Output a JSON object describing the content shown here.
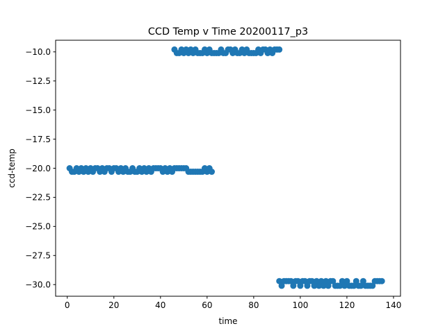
{
  "chart_data": {
    "type": "scatter",
    "title": "CCD Temp v Time 20200117_p3",
    "xlabel": "time",
    "ylabel": "ccd-temp",
    "xlim": [
      -5,
      143
    ],
    "ylim": [
      -31.0,
      -9.0
    ],
    "xticks": [
      0,
      20,
      40,
      60,
      80,
      100,
      120,
      140
    ],
    "xtick_labels": [
      "0",
      "20",
      "40",
      "60",
      "80",
      "100",
      "120",
      "140"
    ],
    "yticks": [
      -10.0,
      -12.5,
      -15.0,
      -17.5,
      -20.0,
      -22.5,
      -25.0,
      -27.5,
      -30.0
    ],
    "ytick_labels": [
      "−10.0",
      "−12.5",
      "−15.0",
      "−17.5",
      "−20.0",
      "−22.5",
      "−25.0",
      "−27.5",
      "−30.0"
    ],
    "grid": false,
    "marker_color": "#1f77b4",
    "points": [
      {
        "x": 1,
        "y": -20.0
      },
      {
        "x": 2,
        "y": -20.3
      },
      {
        "x": 3,
        "y": -20.3
      },
      {
        "x": 4,
        "y": -20.0
      },
      {
        "x": 5,
        "y": -20.3
      },
      {
        "x": 6,
        "y": -20.0
      },
      {
        "x": 7,
        "y": -20.3
      },
      {
        "x": 8,
        "y": -20.0
      },
      {
        "x": 9,
        "y": -20.3
      },
      {
        "x": 10,
        "y": -20.0
      },
      {
        "x": 11,
        "y": -20.3
      },
      {
        "x": 12,
        "y": -20.0
      },
      {
        "x": 13,
        "y": -20.0
      },
      {
        "x": 14,
        "y": -20.3
      },
      {
        "x": 15,
        "y": -20.0
      },
      {
        "x": 16,
        "y": -20.3
      },
      {
        "x": 17,
        "y": -20.0
      },
      {
        "x": 18,
        "y": -20.0
      },
      {
        "x": 19,
        "y": -20.3
      },
      {
        "x": 20,
        "y": -20.0
      },
      {
        "x": 21,
        "y": -20.0
      },
      {
        "x": 22,
        "y": -20.3
      },
      {
        "x": 23,
        "y": -20.0
      },
      {
        "x": 24,
        "y": -20.3
      },
      {
        "x": 25,
        "y": -20.0
      },
      {
        "x": 26,
        "y": -20.3
      },
      {
        "x": 27,
        "y": -20.3
      },
      {
        "x": 28,
        "y": -20.0
      },
      {
        "x": 29,
        "y": -20.3
      },
      {
        "x": 30,
        "y": -20.3
      },
      {
        "x": 31,
        "y": -20.0
      },
      {
        "x": 32,
        "y": -20.3
      },
      {
        "x": 33,
        "y": -20.0
      },
      {
        "x": 34,
        "y": -20.3
      },
      {
        "x": 35,
        "y": -20.0
      },
      {
        "x": 36,
        "y": -20.3
      },
      {
        "x": 37,
        "y": -20.0
      },
      {
        "x": 38,
        "y": -20.0
      },
      {
        "x": 39,
        "y": -20.0
      },
      {
        "x": 40,
        "y": -20.0
      },
      {
        "x": 41,
        "y": -20.3
      },
      {
        "x": 42,
        "y": -20.0
      },
      {
        "x": 43,
        "y": -20.3
      },
      {
        "x": 44,
        "y": -20.0
      },
      {
        "x": 45,
        "y": -20.3
      },
      {
        "x": 46,
        "y": -20.0
      },
      {
        "x": 47,
        "y": -20.0
      },
      {
        "x": 48,
        "y": -20.0
      },
      {
        "x": 49,
        "y": -20.0
      },
      {
        "x": 50,
        "y": -20.0
      },
      {
        "x": 51,
        "y": -20.0
      },
      {
        "x": 52,
        "y": -20.3
      },
      {
        "x": 53,
        "y": -20.3
      },
      {
        "x": 54,
        "y": -20.3
      },
      {
        "x": 55,
        "y": -20.3
      },
      {
        "x": 56,
        "y": -20.3
      },
      {
        "x": 57,
        "y": -20.3
      },
      {
        "x": 58,
        "y": -20.3
      },
      {
        "x": 59,
        "y": -20.0
      },
      {
        "x": 60,
        "y": -20.3
      },
      {
        "x": 61,
        "y": -20.0
      },
      {
        "x": 62,
        "y": -20.3
      },
      {
        "x": 46,
        "y": -9.8
      },
      {
        "x": 47,
        "y": -10.1
      },
      {
        "x": 48,
        "y": -10.1
      },
      {
        "x": 49,
        "y": -9.8
      },
      {
        "x": 50,
        "y": -10.1
      },
      {
        "x": 51,
        "y": -9.8
      },
      {
        "x": 52,
        "y": -10.1
      },
      {
        "x": 53,
        "y": -9.8
      },
      {
        "x": 54,
        "y": -10.1
      },
      {
        "x": 55,
        "y": -9.8
      },
      {
        "x": 56,
        "y": -10.1
      },
      {
        "x": 57,
        "y": -10.1
      },
      {
        "x": 58,
        "y": -10.1
      },
      {
        "x": 59,
        "y": -9.8
      },
      {
        "x": 60,
        "y": -10.1
      },
      {
        "x": 61,
        "y": -9.8
      },
      {
        "x": 62,
        "y": -10.1
      },
      {
        "x": 63,
        "y": -10.1
      },
      {
        "x": 64,
        "y": -10.1
      },
      {
        "x": 65,
        "y": -10.1
      },
      {
        "x": 66,
        "y": -9.8
      },
      {
        "x": 67,
        "y": -10.1
      },
      {
        "x": 68,
        "y": -10.1
      },
      {
        "x": 69,
        "y": -9.8
      },
      {
        "x": 70,
        "y": -9.8
      },
      {
        "x": 71,
        "y": -10.1
      },
      {
        "x": 72,
        "y": -9.8
      },
      {
        "x": 73,
        "y": -10.1
      },
      {
        "x": 74,
        "y": -10.1
      },
      {
        "x": 75,
        "y": -9.8
      },
      {
        "x": 76,
        "y": -10.1
      },
      {
        "x": 77,
        "y": -9.8
      },
      {
        "x": 78,
        "y": -10.1
      },
      {
        "x": 79,
        "y": -10.1
      },
      {
        "x": 80,
        "y": -10.1
      },
      {
        "x": 81,
        "y": -10.1
      },
      {
        "x": 82,
        "y": -9.8
      },
      {
        "x": 83,
        "y": -10.1
      },
      {
        "x": 84,
        "y": -9.8
      },
      {
        "x": 85,
        "y": -9.8
      },
      {
        "x": 86,
        "y": -10.1
      },
      {
        "x": 87,
        "y": -9.8
      },
      {
        "x": 88,
        "y": -10.1
      },
      {
        "x": 89,
        "y": -9.8
      },
      {
        "x": 90,
        "y": -9.8
      },
      {
        "x": 91,
        "y": -9.8
      },
      {
        "x": 91,
        "y": -29.7
      },
      {
        "x": 92,
        "y": -30.1
      },
      {
        "x": 93,
        "y": -29.7
      },
      {
        "x": 94,
        "y": -29.7
      },
      {
        "x": 95,
        "y": -29.7
      },
      {
        "x": 96,
        "y": -29.7
      },
      {
        "x": 97,
        "y": -30.1
      },
      {
        "x": 98,
        "y": -29.7
      },
      {
        "x": 99,
        "y": -29.7
      },
      {
        "x": 100,
        "y": -30.1
      },
      {
        "x": 101,
        "y": -29.7
      },
      {
        "x": 102,
        "y": -29.7
      },
      {
        "x": 103,
        "y": -30.1
      },
      {
        "x": 104,
        "y": -29.7
      },
      {
        "x": 105,
        "y": -29.7
      },
      {
        "x": 106,
        "y": -30.1
      },
      {
        "x": 107,
        "y": -29.7
      },
      {
        "x": 108,
        "y": -30.1
      },
      {
        "x": 109,
        "y": -29.7
      },
      {
        "x": 110,
        "y": -30.1
      },
      {
        "x": 111,
        "y": -29.7
      },
      {
        "x": 112,
        "y": -30.1
      },
      {
        "x": 113,
        "y": -29.7
      },
      {
        "x": 114,
        "y": -29.7
      },
      {
        "x": 115,
        "y": -30.1
      },
      {
        "x": 116,
        "y": -30.1
      },
      {
        "x": 117,
        "y": -30.1
      },
      {
        "x": 118,
        "y": -29.7
      },
      {
        "x": 119,
        "y": -30.1
      },
      {
        "x": 120,
        "y": -29.7
      },
      {
        "x": 121,
        "y": -30.1
      },
      {
        "x": 122,
        "y": -30.1
      },
      {
        "x": 123,
        "y": -30.1
      },
      {
        "x": 124,
        "y": -29.7
      },
      {
        "x": 125,
        "y": -30.1
      },
      {
        "x": 126,
        "y": -30.1
      },
      {
        "x": 127,
        "y": -29.7
      },
      {
        "x": 128,
        "y": -30.1
      },
      {
        "x": 129,
        "y": -30.1
      },
      {
        "x": 130,
        "y": -30.1
      },
      {
        "x": 131,
        "y": -30.1
      },
      {
        "x": 132,
        "y": -29.7
      },
      {
        "x": 133,
        "y": -29.7
      },
      {
        "x": 134,
        "y": -29.7
      },
      {
        "x": 135,
        "y": -29.7
      }
    ]
  }
}
